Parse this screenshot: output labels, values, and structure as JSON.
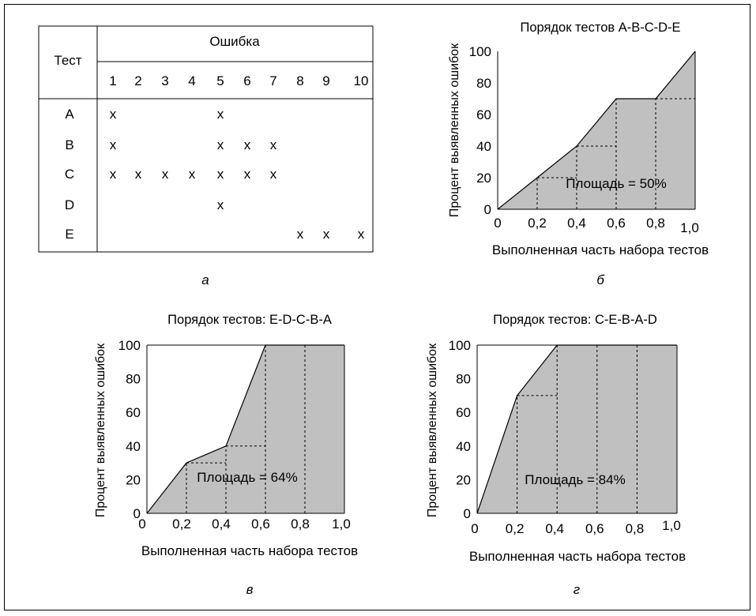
{
  "table": {
    "header_test": "Тест",
    "header_error": "Ошибка",
    "columns": [
      "1",
      "2",
      "3",
      "4",
      "5",
      "6",
      "7",
      "8",
      "9",
      "10"
    ],
    "rows": [
      {
        "label": "A",
        "marks": [
          1,
          5
        ]
      },
      {
        "label": "B",
        "marks": [
          1,
          5,
          6,
          7
        ]
      },
      {
        "label": "C",
        "marks": [
          1,
          2,
          3,
          4,
          5,
          6,
          7
        ]
      },
      {
        "label": "D",
        "marks": [
          5
        ]
      },
      {
        "label": "E",
        "marks": [
          8,
          9,
          10
        ]
      }
    ],
    "mark_symbol": "x",
    "caption": "а"
  },
  "chart_data": [
    {
      "type": "area",
      "title": "Порядок тестов  A-B-C-D-E",
      "xlabel": "Выполненная часть набора тестов",
      "ylabel": "Процент выявленных ошибок",
      "x": [
        0,
        0.2,
        0.4,
        0.6,
        0.8,
        1.0
      ],
      "y": [
        0,
        20,
        40,
        70,
        70,
        100
      ],
      "x_ticks": [
        "0",
        "0,2",
        "0,4",
        "0,6",
        "0,8",
        "1,0"
      ],
      "y_ticks": [
        "0",
        "20",
        "40",
        "60",
        "80",
        "100"
      ],
      "xlim": [
        0,
        1.0
      ],
      "ylim": [
        0,
        100
      ],
      "annotation": "Площадь = 50%",
      "caption": "б",
      "fill_color": "#c0c0c0"
    },
    {
      "type": "area",
      "title": "Порядок тестов: E-D-C-B-A",
      "xlabel": "Выполненная часть набора тестов",
      "ylabel": "Процент выявленных ошибок",
      "x": [
        0,
        0.2,
        0.4,
        0.6,
        0.8,
        1.0
      ],
      "y": [
        0,
        30,
        40,
        100,
        100,
        100
      ],
      "x_ticks": [
        "0",
        "0,2",
        "0,4",
        "0,6",
        "0,8",
        "1,0"
      ],
      "y_ticks": [
        "0",
        "20",
        "40",
        "60",
        "80",
        "100"
      ],
      "xlim": [
        0,
        1.0
      ],
      "ylim": [
        0,
        100
      ],
      "annotation": "Площадь = 64%",
      "caption": "в",
      "fill_color": "#c0c0c0"
    },
    {
      "type": "area",
      "title": "Порядок тестов: C-E-B-A-D",
      "xlabel": "Выполненная часть набора тестов",
      "ylabel": "Процент выявленных ошибок",
      "x": [
        0,
        0.2,
        0.4,
        0.6,
        0.8,
        1.0
      ],
      "y": [
        0,
        70,
        100,
        100,
        100,
        100
      ],
      "x_ticks": [
        "0",
        "0,2",
        "0,4",
        "0,6",
        "0,8",
        "1,0"
      ],
      "y_ticks": [
        "0",
        "20",
        "40",
        "60",
        "80",
        "100"
      ],
      "xlim": [
        0,
        1.0
      ],
      "ylim": [
        0,
        100
      ],
      "annotation": "Площадь = 84%",
      "caption": "г",
      "fill_color": "#c0c0c0"
    }
  ]
}
